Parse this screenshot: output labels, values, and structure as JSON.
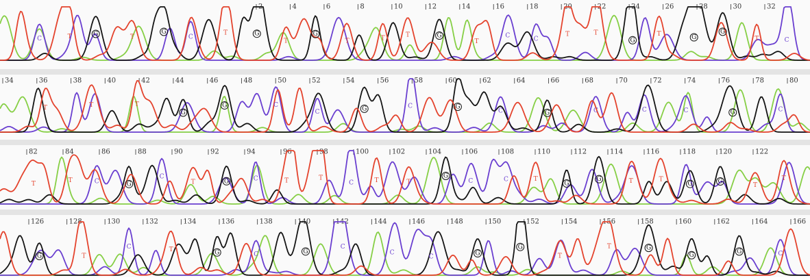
{
  "rows": [
    {
      "positions": [
        2,
        4,
        6,
        8,
        10,
        12,
        14,
        16,
        18,
        20,
        22,
        24,
        26,
        28,
        30,
        32
      ],
      "bases": [
        "C",
        "T",
        "G",
        "T",
        "G",
        "C",
        "T",
        "G",
        "T",
        "G",
        "T",
        "T",
        "T",
        "G",
        "T",
        "C",
        "C",
        "T",
        "T",
        "G",
        "T",
        "G",
        "G",
        "T",
        "C"
      ]
    },
    {
      "positions": [
        34,
        36,
        38,
        40,
        42,
        44,
        46,
        48,
        50,
        52,
        54,
        56,
        58,
        60,
        62,
        64,
        66,
        68,
        70,
        72,
        74,
        76,
        78,
        80
      ],
      "bases": [
        "T",
        "T",
        "T",
        "G",
        "G",
        "C",
        "C",
        "G",
        "C",
        "G",
        "C",
        "G",
        "C",
        "C",
        "C",
        "G",
        "C"
      ]
    },
    {
      "positions": [
        82,
        84,
        86,
        88,
        90,
        92,
        94,
        96,
        98,
        100,
        102,
        104,
        106,
        108,
        110,
        112,
        114,
        116,
        118,
        120,
        122
      ],
      "bases": [
        "T",
        "T",
        "C",
        "G",
        "C",
        "T",
        "G",
        "C",
        "T",
        "T",
        "C",
        "T",
        "T",
        "G",
        "C",
        "C",
        "T",
        "G",
        "G",
        "T",
        "T",
        "G",
        "G",
        "T",
        "T"
      ]
    },
    {
      "positions": [
        126,
        128,
        130,
        132,
        134,
        136,
        138,
        140,
        142,
        144,
        146,
        148,
        150,
        152,
        154,
        156,
        158,
        160,
        162,
        164,
        166
      ],
      "bases": [
        "G",
        "T",
        "C",
        "T",
        "G",
        "C",
        "G",
        "C",
        "C",
        "C",
        "G",
        "G",
        "T",
        "T",
        "G",
        "G",
        "G",
        "C"
      ]
    }
  ],
  "base_colors": {
    "A": "#86cf45",
    "C": "#6a3fd0",
    "G": "#151515",
    "T": "#e4432d"
  }
}
